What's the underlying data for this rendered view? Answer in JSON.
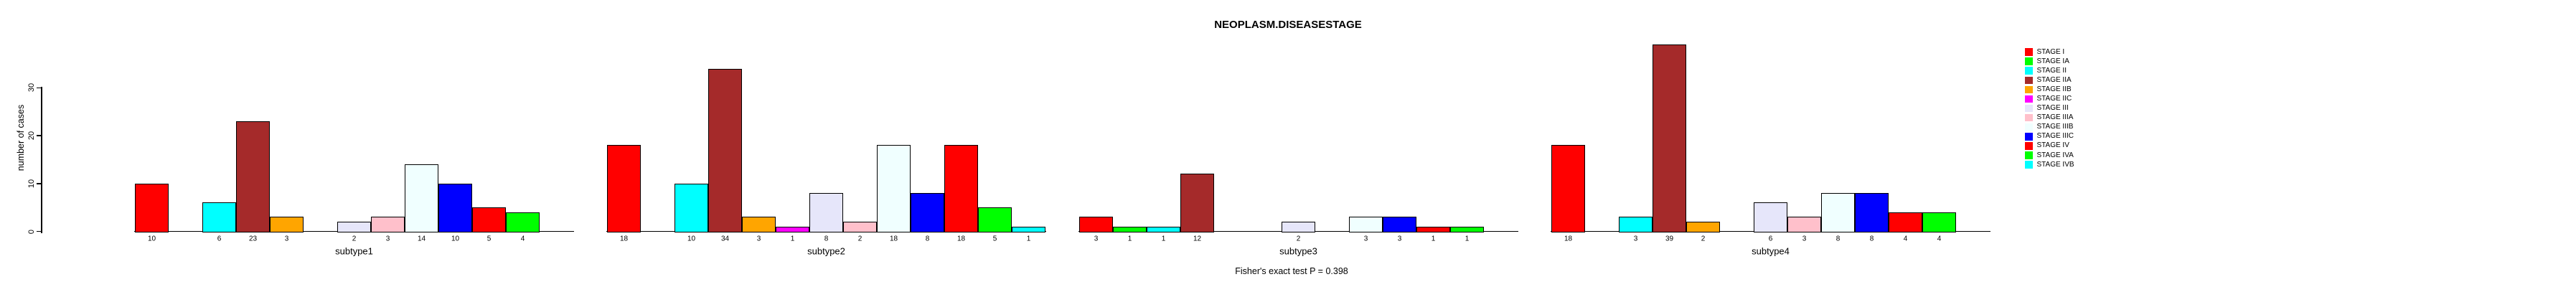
{
  "chart_data": {
    "type": "bar",
    "title": "NEOPLASM.DISEASESTAGE",
    "ylabel": "number of cases",
    "xlabel": "",
    "yticks": [
      0,
      10,
      20,
      30
    ],
    "ylim": [
      0,
      39
    ],
    "grid": false,
    "legend_position": "right-outside",
    "annotation": "Fisher's exact test P = 0.398",
    "bar_label_rule": "each non-zero bar is labeled with its value below the baseline",
    "categories": [
      "subtype1",
      "subtype2",
      "subtype3",
      "subtype4"
    ],
    "series": [
      {
        "name": "STAGE I",
        "color": "#FF0000",
        "values": [
          10,
          18,
          3,
          18
        ]
      },
      {
        "name": "STAGE IA",
        "color": "#00FF00",
        "values": [
          0,
          0,
          1,
          0
        ]
      },
      {
        "name": "STAGE II",
        "color": "#00FFFF",
        "values": [
          6,
          10,
          1,
          3
        ]
      },
      {
        "name": "STAGE IIA",
        "color": "#A52A2A",
        "values": [
          23,
          34,
          12,
          39
        ]
      },
      {
        "name": "STAGE IIB",
        "color": "#FFA500",
        "values": [
          3,
          3,
          0,
          2
        ]
      },
      {
        "name": "STAGE IIC",
        "color": "#FF00FF",
        "values": [
          0,
          1,
          0,
          0
        ]
      },
      {
        "name": "STAGE III",
        "color": "#E6E6FA",
        "values": [
          2,
          8,
          2,
          6
        ]
      },
      {
        "name": "STAGE IIIA",
        "color": "#FFC0CB",
        "values": [
          3,
          2,
          0,
          3
        ]
      },
      {
        "name": "STAGE IIIB",
        "color": "#F0FFFF",
        "values": [
          14,
          18,
          3,
          8
        ]
      },
      {
        "name": "STAGE IIIC",
        "color": "#0000FF",
        "values": [
          10,
          8,
          3,
          8
        ]
      },
      {
        "name": "STAGE IV",
        "color": "#FF0000",
        "values": [
          5,
          18,
          1,
          4
        ]
      },
      {
        "name": "STAGE IVA",
        "color": "#00FF00",
        "values": [
          4,
          5,
          1,
          4
        ]
      },
      {
        "name": "STAGE IVB",
        "color": "#00FFFF",
        "values": [
          0,
          1,
          0,
          0
        ]
      }
    ],
    "colors": {
      "background": "#FFFFFF",
      "axis": "#000000",
      "text": "#000000"
    }
  }
}
